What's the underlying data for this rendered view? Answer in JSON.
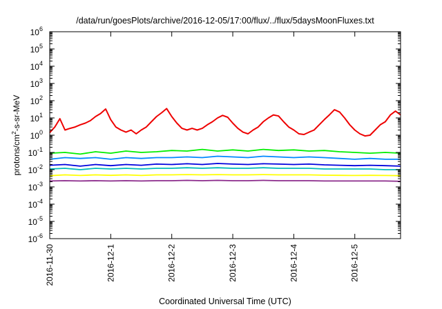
{
  "chart_data": {
    "type": "line",
    "title": "/data/run/goesPlots/archive/2016-12-05/17:00/flux/../flux/5daysMoonFluxes.txt",
    "xlabel": "Coordinated Universal Time (UTC)",
    "ylabel": {
      "base": "protons/cm",
      "sup": "2",
      "rest": "-s-sr-MeV"
    },
    "yscale": "log",
    "ylim": [
      1e-06,
      1000000.0
    ],
    "xlim": [
      "2016-11-30",
      "2016-12-05 18:00"
    ],
    "x_tick_labels": [
      "2016-11-30",
      "2016-12-1",
      "2016-12-2",
      "2016-12-3",
      "2016-12-4",
      "2016-12-5"
    ],
    "y_ticks": [
      {
        "value": 1e-06,
        "base": "10",
        "exp": "-6"
      },
      {
        "value": 1e-05,
        "base": "10",
        "exp": "-5"
      },
      {
        "value": 0.0001,
        "base": "10",
        "exp": "-4"
      },
      {
        "value": 0.001,
        "base": "10",
        "exp": "-3"
      },
      {
        "value": 0.01,
        "base": "10",
        "exp": "-2"
      },
      {
        "value": 0.1,
        "base": "10",
        "exp": "-1"
      },
      {
        "value": 1,
        "base": "10",
        "exp": "0"
      },
      {
        "value": 10,
        "base": "10",
        "exp": "1"
      },
      {
        "value": 100,
        "base": "10",
        "exp": "2"
      },
      {
        "value": 1000,
        "base": "10",
        "exp": "3"
      },
      {
        "value": 10000,
        "base": "10",
        "exp": "4"
      },
      {
        "value": 100000,
        "base": "10",
        "exp": "5"
      },
      {
        "value": 1000000,
        "base": "10",
        "exp": "6"
      }
    ],
    "grid": false,
    "legend": "none",
    "series": [
      {
        "color": "#ee0000",
        "x": [
          "2016-11-30 00:00",
          "2016-11-30 02:00",
          "2016-11-30 04:00",
          "2016-11-30 06:00",
          "2016-11-30 08:00",
          "2016-11-30 10:00",
          "2016-11-30 12:00",
          "2016-11-30 14:00",
          "2016-11-30 16:00",
          "2016-11-30 18:00",
          "2016-11-30 20:00",
          "2016-11-30 22:00",
          "2016-12-01 00:00",
          "2016-12-01 02:00",
          "2016-12-01 04:00",
          "2016-12-01 06:00",
          "2016-12-01 08:00",
          "2016-12-01 10:00",
          "2016-12-01 12:00",
          "2016-12-01 14:00",
          "2016-12-01 16:00",
          "2016-12-01 18:00",
          "2016-12-01 20:00",
          "2016-12-01 22:00",
          "2016-12-02 00:00",
          "2016-12-02 02:00",
          "2016-12-02 04:00",
          "2016-12-02 06:00",
          "2016-12-02 08:00",
          "2016-12-02 10:00",
          "2016-12-02 12:00",
          "2016-12-02 14:00",
          "2016-12-02 16:00",
          "2016-12-02 18:00",
          "2016-12-02 20:00",
          "2016-12-02 22:00",
          "2016-12-03 00:00",
          "2016-12-03 02:00",
          "2016-12-03 04:00",
          "2016-12-03 06:00",
          "2016-12-03 08:00",
          "2016-12-03 10:00",
          "2016-12-03 12:00",
          "2016-12-03 14:00",
          "2016-12-03 16:00",
          "2016-12-03 18:00",
          "2016-12-03 20:00",
          "2016-12-03 22:00",
          "2016-12-04 00:00",
          "2016-12-04 02:00",
          "2016-12-04 04:00",
          "2016-12-04 06:00",
          "2016-12-04 08:00",
          "2016-12-04 10:00",
          "2016-12-04 12:00",
          "2016-12-04 14:00",
          "2016-12-04 16:00",
          "2016-12-04 18:00",
          "2016-12-04 20:00",
          "2016-12-04 22:00",
          "2016-12-05 00:00",
          "2016-12-05 02:00",
          "2016-12-05 04:00",
          "2016-12-05 06:00",
          "2016-12-05 08:00",
          "2016-12-05 10:00",
          "2016-12-05 12:00",
          "2016-12-05 14:00",
          "2016-12-05 16:00",
          "2016-12-05 18:00"
        ],
        "values": [
          1.4,
          3,
          9,
          2,
          2.5,
          3,
          4,
          5,
          7,
          12,
          18,
          33,
          8,
          3,
          2,
          1.5,
          2,
          1.2,
          2,
          3,
          6,
          12,
          20,
          35,
          12,
          5,
          2.5,
          2,
          2.5,
          2,
          2.5,
          4,
          6,
          10,
          14,
          11,
          5,
          2.5,
          1.5,
          1.2,
          2,
          3,
          6,
          10,
          15,
          13,
          6,
          3,
          2,
          1.2,
          1.1,
          1.5,
          2,
          4,
          8,
          15,
          30,
          22,
          10,
          4,
          2,
          1.2,
          0.9,
          1,
          2,
          4,
          6,
          15,
          25,
          15
        ]
      },
      {
        "color": "#00ee00",
        "x": [
          "2016-11-30 00:00",
          "2016-11-30 06:00",
          "2016-11-30 12:00",
          "2016-11-30 18:00",
          "2016-12-01 00:00",
          "2016-12-01 06:00",
          "2016-12-01 12:00",
          "2016-12-01 18:00",
          "2016-12-02 00:00",
          "2016-12-02 06:00",
          "2016-12-02 12:00",
          "2016-12-02 18:00",
          "2016-12-03 00:00",
          "2016-12-03 06:00",
          "2016-12-03 12:00",
          "2016-12-03 18:00",
          "2016-12-04 00:00",
          "2016-12-04 06:00",
          "2016-12-04 12:00",
          "2016-12-04 18:00",
          "2016-12-05 00:00",
          "2016-12-05 06:00",
          "2016-12-05 12:00",
          "2016-12-05 18:00"
        ],
        "values": [
          0.09,
          0.1,
          0.08,
          0.11,
          0.09,
          0.12,
          0.1,
          0.11,
          0.13,
          0.12,
          0.15,
          0.12,
          0.14,
          0.12,
          0.15,
          0.13,
          0.14,
          0.12,
          0.13,
          0.11,
          0.1,
          0.09,
          0.1,
          0.09
        ]
      },
      {
        "color": "#0088ff",
        "x": [
          "2016-11-30 00:00",
          "2016-11-30 06:00",
          "2016-11-30 12:00",
          "2016-11-30 18:00",
          "2016-12-01 00:00",
          "2016-12-01 06:00",
          "2016-12-01 12:00",
          "2016-12-01 18:00",
          "2016-12-02 00:00",
          "2016-12-02 06:00",
          "2016-12-02 12:00",
          "2016-12-02 18:00",
          "2016-12-03 00:00",
          "2016-12-03 06:00",
          "2016-12-03 12:00",
          "2016-12-03 18:00",
          "2016-12-04 00:00",
          "2016-12-04 06:00",
          "2016-12-04 12:00",
          "2016-12-04 18:00",
          "2016-12-05 00:00",
          "2016-12-05 06:00",
          "2016-12-05 12:00",
          "2016-12-05 18:00"
        ],
        "values": [
          0.04,
          0.05,
          0.045,
          0.05,
          0.04,
          0.05,
          0.045,
          0.05,
          0.05,
          0.055,
          0.05,
          0.06,
          0.055,
          0.05,
          0.06,
          0.055,
          0.05,
          0.055,
          0.05,
          0.045,
          0.04,
          0.045,
          0.04,
          0.04
        ]
      },
      {
        "color": "#0000dd",
        "x": [
          "2016-11-30 00:00",
          "2016-11-30 06:00",
          "2016-11-30 12:00",
          "2016-11-30 18:00",
          "2016-12-01 00:00",
          "2016-12-01 06:00",
          "2016-12-01 12:00",
          "2016-12-01 18:00",
          "2016-12-02 00:00",
          "2016-12-02 06:00",
          "2016-12-02 12:00",
          "2016-12-02 18:00",
          "2016-12-03 00:00",
          "2016-12-03 06:00",
          "2016-12-03 12:00",
          "2016-12-03 18:00",
          "2016-12-04 00:00",
          "2016-12-04 06:00",
          "2016-12-04 12:00",
          "2016-12-04 18:00",
          "2016-12-05 00:00",
          "2016-12-05 06:00",
          "2016-12-05 12:00",
          "2016-12-05 18:00"
        ],
        "values": [
          0.018,
          0.02,
          0.016,
          0.02,
          0.017,
          0.02,
          0.018,
          0.021,
          0.02,
          0.022,
          0.02,
          0.023,
          0.021,
          0.02,
          0.022,
          0.021,
          0.02,
          0.021,
          0.019,
          0.018,
          0.017,
          0.018,
          0.017,
          0.016
        ]
      },
      {
        "color": "#00bbbb",
        "x": [
          "2016-11-30 00:00",
          "2016-11-30 06:00",
          "2016-11-30 12:00",
          "2016-11-30 18:00",
          "2016-12-01 00:00",
          "2016-12-01 06:00",
          "2016-12-01 12:00",
          "2016-12-01 18:00",
          "2016-12-02 00:00",
          "2016-12-02 06:00",
          "2016-12-02 12:00",
          "2016-12-02 18:00",
          "2016-12-03 00:00",
          "2016-12-03 06:00",
          "2016-12-03 12:00",
          "2016-12-03 18:00",
          "2016-12-04 00:00",
          "2016-12-04 06:00",
          "2016-12-04 12:00",
          "2016-12-04 18:00",
          "2016-12-05 00:00",
          "2016-12-05 06:00",
          "2016-12-05 12:00",
          "2016-12-05 18:00"
        ],
        "values": [
          0.011,
          0.012,
          0.01,
          0.012,
          0.011,
          0.012,
          0.011,
          0.012,
          0.012,
          0.013,
          0.012,
          0.013,
          0.012,
          0.012,
          0.013,
          0.012,
          0.012,
          0.012,
          0.011,
          0.011,
          0.011,
          0.011,
          0.01,
          0.01
        ]
      },
      {
        "color": "#ffff00",
        "x": [
          "2016-11-30 00:00",
          "2016-11-30 06:00",
          "2016-11-30 12:00",
          "2016-11-30 18:00",
          "2016-12-01 00:00",
          "2016-12-01 06:00",
          "2016-12-01 12:00",
          "2016-12-01 18:00",
          "2016-12-02 00:00",
          "2016-12-02 06:00",
          "2016-12-02 12:00",
          "2016-12-02 18:00",
          "2016-12-03 00:00",
          "2016-12-03 06:00",
          "2016-12-03 12:00",
          "2016-12-03 18:00",
          "2016-12-04 00:00",
          "2016-12-04 06:00",
          "2016-12-04 12:00",
          "2016-12-04 18:00",
          "2016-12-05 00:00",
          "2016-12-05 06:00",
          "2016-12-05 12:00",
          "2016-12-05 18:00"
        ],
        "values": [
          0.0045,
          0.005,
          0.0046,
          0.005,
          0.0047,
          0.005,
          0.0046,
          0.005,
          0.005,
          0.0052,
          0.005,
          0.0052,
          0.005,
          0.005,
          0.0052,
          0.005,
          0.005,
          0.005,
          0.0048,
          0.0047,
          0.0046,
          0.0047,
          0.0046,
          0.0045
        ]
      },
      {
        "color": "#8b2a8b",
        "x": [
          "2016-11-30 00:00",
          "2016-11-30 06:00",
          "2016-11-30 12:00",
          "2016-11-30 18:00",
          "2016-12-01 00:00",
          "2016-12-01 06:00",
          "2016-12-01 12:00",
          "2016-12-01 18:00",
          "2016-12-02 00:00",
          "2016-12-02 06:00",
          "2016-12-02 12:00",
          "2016-12-02 18:00",
          "2016-12-03 00:00",
          "2016-12-03 06:00",
          "2016-12-03 12:00",
          "2016-12-03 18:00",
          "2016-12-04 00:00",
          "2016-12-04 06:00",
          "2016-12-04 12:00",
          "2016-12-04 18:00",
          "2016-12-05 00:00",
          "2016-12-05 06:00",
          "2016-12-05 12:00",
          "2016-12-05 18:00"
        ],
        "values": [
          0.0022,
          0.0023,
          0.0022,
          0.0023,
          0.0022,
          0.0023,
          0.0022,
          0.0023,
          0.0023,
          0.0024,
          0.0023,
          0.0024,
          0.0023,
          0.0023,
          0.0024,
          0.0023,
          0.0023,
          0.0023,
          0.0022,
          0.0022,
          0.0022,
          0.0022,
          0.0022,
          0.0021
        ]
      }
    ]
  }
}
